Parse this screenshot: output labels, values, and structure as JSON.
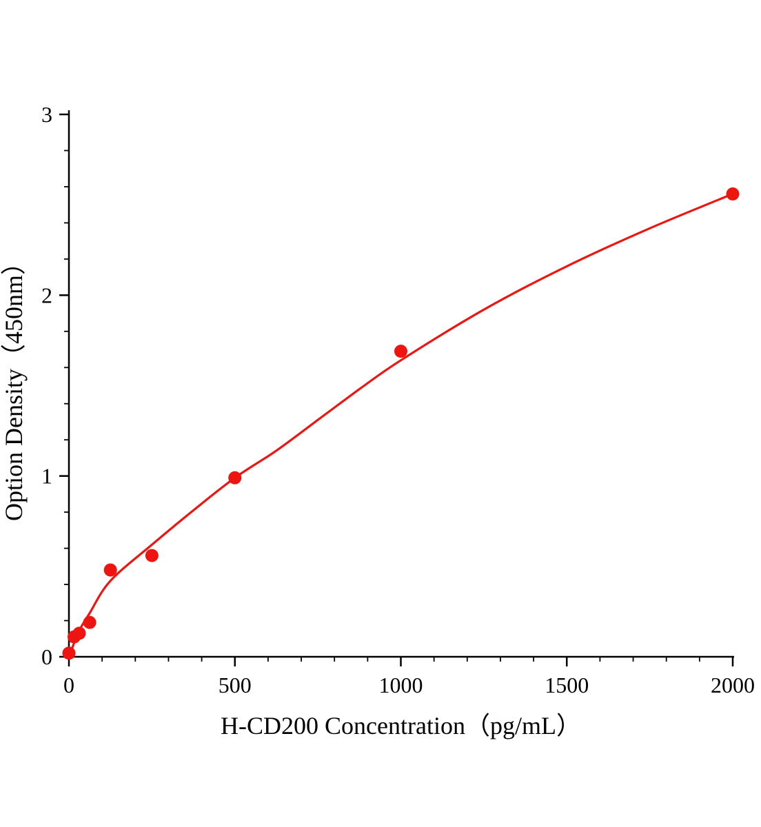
{
  "figure": {
    "background": "#ffffff"
  },
  "chart_data": {
    "type": "scatter",
    "title": "",
    "xlabel": "H-CD200 Concentration（pg/mL）",
    "ylabel": "Option Density（450nm）",
    "xlim": [
      0,
      2000
    ],
    "ylim": [
      0,
      3
    ],
    "x_ticks": [
      0,
      500,
      1000,
      1500,
      2000
    ],
    "x_tick_labels": [
      "0",
      "500",
      "1000",
      "1500",
      "2000"
    ],
    "x_minor_step": 100,
    "y_ticks": [
      0,
      1,
      2,
      3
    ],
    "y_tick_labels": [
      "0",
      "1",
      "2",
      "3"
    ],
    "y_minor_step": 0.2,
    "grid": false,
    "legend": "none",
    "accent_color": "#ee1511",
    "axis_color": "#000000",
    "points": [
      {
        "x": 0,
        "y": 0.02
      },
      {
        "x": 15.6,
        "y": 0.11
      },
      {
        "x": 31.25,
        "y": 0.13
      },
      {
        "x": 62.5,
        "y": 0.19
      },
      {
        "x": 125,
        "y": 0.48
      },
      {
        "x": 250,
        "y": 0.56
      },
      {
        "x": 500,
        "y": 0.99
      },
      {
        "x": 1000,
        "y": 1.69
      },
      {
        "x": 2000,
        "y": 2.56
      }
    ],
    "fit_curve": [
      {
        "x": 0,
        "y": 0.0
      },
      {
        "x": 30,
        "y": 0.14
      },
      {
        "x": 62,
        "y": 0.24
      },
      {
        "x": 125,
        "y": 0.42
      },
      {
        "x": 250,
        "y": 0.62
      },
      {
        "x": 375,
        "y": 0.81
      },
      {
        "x": 500,
        "y": 0.99
      },
      {
        "x": 625,
        "y": 1.14
      },
      {
        "x": 750,
        "y": 1.31
      },
      {
        "x": 875,
        "y": 1.48
      },
      {
        "x": 1000,
        "y": 1.64
      },
      {
        "x": 1250,
        "y": 1.92
      },
      {
        "x": 1500,
        "y": 2.16
      },
      {
        "x": 1750,
        "y": 2.37
      },
      {
        "x": 2000,
        "y": 2.56
      }
    ]
  }
}
